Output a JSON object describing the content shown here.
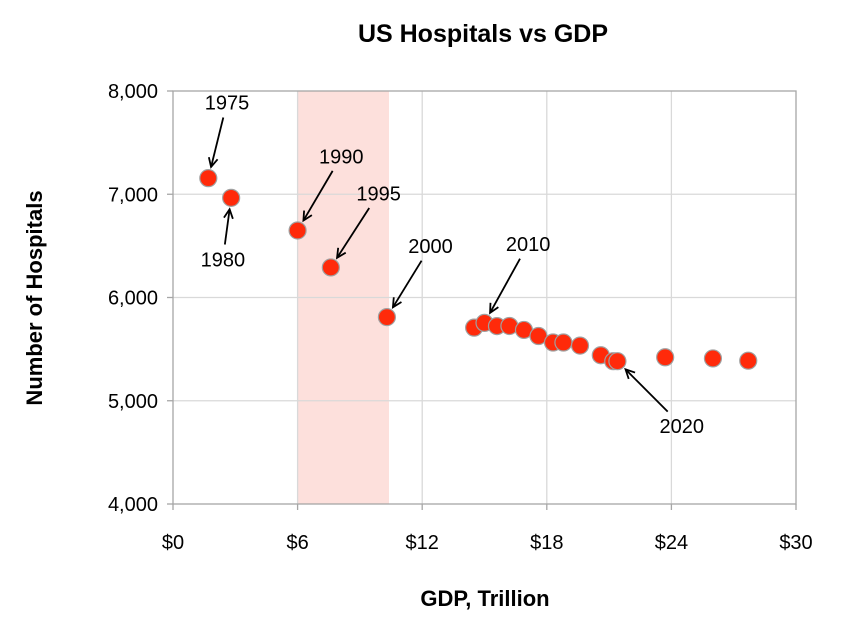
{
  "chart_data": {
    "type": "scatter",
    "title": "US Hospitals vs GDP",
    "xlabel": "GDP, Trillion",
    "ylabel": "Number of Hospitals",
    "xlim": [
      0,
      30
    ],
    "ylim": [
      4000,
      8000
    ],
    "x_ticks": [
      0,
      6,
      12,
      18,
      24,
      30
    ],
    "x_tick_labels": [
      "$0",
      "$6",
      "$12",
      "$18",
      "$24",
      "$30"
    ],
    "y_ticks": [
      4000,
      5000,
      6000,
      7000,
      8000
    ],
    "y_tick_labels": [
      "4,000",
      "5,000",
      "6,000",
      "7,000",
      "8,000"
    ],
    "grid": true,
    "highlight_band": {
      "x_from": 6.0,
      "x_to": 10.4,
      "color": "#fde0dc"
    },
    "series": [
      {
        "name": "US Hospitals",
        "color": "#ff2a0a",
        "points": [
          {
            "x": 1.7,
            "y": 7156
          },
          {
            "x": 2.8,
            "y": 6965
          },
          {
            "x": 6.0,
            "y": 6649
          },
          {
            "x": 7.6,
            "y": 6291
          },
          {
            "x": 10.3,
            "y": 5810
          },
          {
            "x": 14.5,
            "y": 5708
          },
          {
            "x": 15.0,
            "y": 5754
          },
          {
            "x": 15.6,
            "y": 5723
          },
          {
            "x": 16.2,
            "y": 5724
          },
          {
            "x": 16.9,
            "y": 5686
          },
          {
            "x": 17.6,
            "y": 5627
          },
          {
            "x": 18.3,
            "y": 5564
          },
          {
            "x": 18.8,
            "y": 5564
          },
          {
            "x": 19.6,
            "y": 5534
          },
          {
            "x": 20.6,
            "y": 5441
          },
          {
            "x": 21.2,
            "y": 5383
          },
          {
            "x": 21.4,
            "y": 5383
          },
          {
            "x": 23.7,
            "y": 5421
          },
          {
            "x": 26.0,
            "y": 5410
          },
          {
            "x": 27.7,
            "y": 5388
          }
        ]
      }
    ],
    "annotations": [
      {
        "text": "1975",
        "x": 2.6,
        "y": 7820,
        "ax": 1.7,
        "ay": 7156
      },
      {
        "text": "1980",
        "x": 2.4,
        "y": 6300,
        "ax": 2.8,
        "ay": 6965
      },
      {
        "text": "1990",
        "x": 8.1,
        "y": 7300,
        "ax": 6.0,
        "ay": 6649
      },
      {
        "text": "1995",
        "x": 9.9,
        "y": 6940,
        "ax": 7.6,
        "ay": 6291
      },
      {
        "text": "2000",
        "x": 12.4,
        "y": 6430,
        "ax": 10.3,
        "ay": 5810
      },
      {
        "text": "2010",
        "x": 17.1,
        "y": 6450,
        "ax": 15.0,
        "ay": 5754
      },
      {
        "text": "2020",
        "x": 24.5,
        "y": 4690,
        "ax": 21.4,
        "ay": 5383
      }
    ]
  }
}
